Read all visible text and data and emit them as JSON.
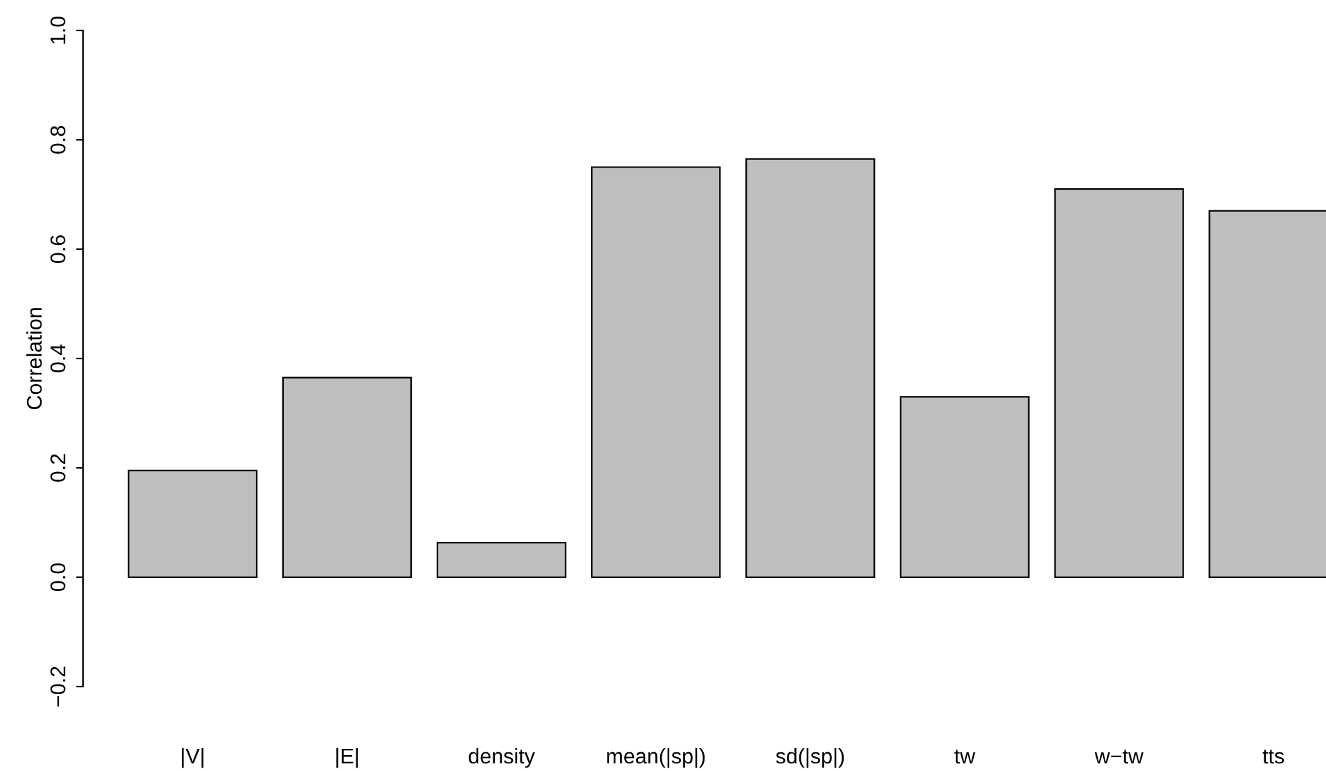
{
  "chart_data": {
    "type": "bar",
    "ylabel": "Correlation",
    "categories": [
      "|V|",
      "|E|",
      "density",
      "mean(|sp|)",
      "sd(|sp|)",
      "tw",
      "w−tw",
      "tts"
    ],
    "values": [
      0.195,
      0.365,
      0.063,
      0.75,
      0.765,
      0.33,
      0.71,
      0.67
    ],
    "color": "#bebebe",
    "ylim": [
      -0.2,
      1.0
    ],
    "yticks": [
      {
        "value": -0.2,
        "label": "−0.2"
      },
      {
        "value": 0,
        "label": "0.0"
      },
      {
        "value": 0.2,
        "label": "0.2"
      },
      {
        "value": 0.4,
        "label": "0.4"
      },
      {
        "value": 0.6,
        "label": "0.6"
      },
      {
        "value": 0.8,
        "label": "0.8"
      },
      {
        "value": 1.0,
        "label": "1.0"
      }
    ],
    "grid": false,
    "legend": false
  }
}
